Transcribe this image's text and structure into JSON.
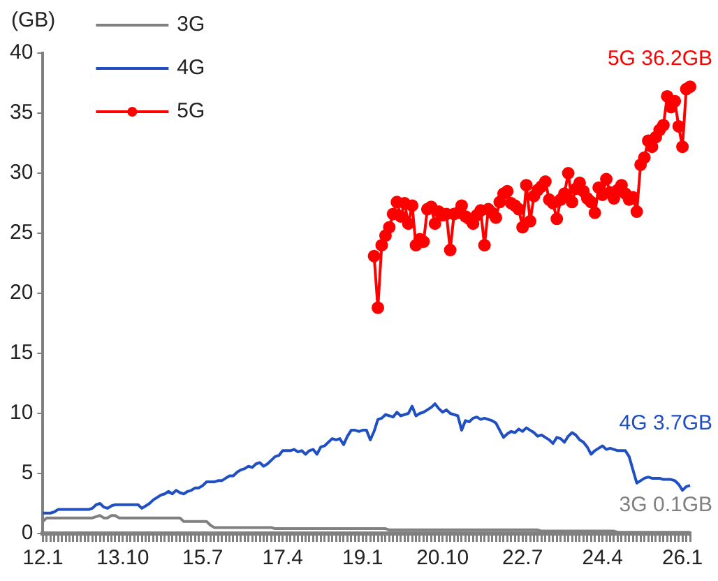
{
  "chart_data": {
    "type": "line",
    "ylabel": "(GB)",
    "legend": "top left",
    "grid": false,
    "line_style": "solid",
    "categories": [
      "12.1",
      null,
      null,
      null,
      null,
      null,
      null,
      null,
      null,
      null,
      null,
      null,
      null,
      null,
      null,
      null,
      null,
      null,
      null,
      null,
      null,
      "13.10",
      null,
      null,
      null,
      null,
      null,
      null,
      null,
      null,
      null,
      null,
      null,
      null,
      null,
      null,
      null,
      null,
      null,
      null,
      null,
      null,
      "15.7",
      null,
      null,
      null,
      null,
      null,
      null,
      null,
      null,
      null,
      null,
      null,
      null,
      null,
      null,
      null,
      null,
      null,
      null,
      null,
      null,
      "17.4",
      null,
      null,
      null,
      null,
      null,
      null,
      null,
      null,
      null,
      null,
      null,
      null,
      null,
      null,
      null,
      null,
      null,
      null,
      null,
      null,
      "19.1",
      null,
      null,
      null,
      null,
      null,
      null,
      null,
      null,
      null,
      null,
      null,
      null,
      null,
      null,
      null,
      null,
      null,
      null,
      null,
      null,
      "20.10",
      null,
      null,
      null,
      null,
      null,
      null,
      null,
      null,
      null,
      null,
      null,
      null,
      null,
      null,
      null,
      null,
      null,
      null,
      null,
      null,
      "22.7",
      null,
      null,
      null,
      null,
      null,
      null,
      null,
      null,
      null,
      null,
      null,
      null,
      null,
      null,
      null,
      null,
      null,
      null,
      null,
      null,
      "24.4",
      null,
      null,
      null,
      null,
      null,
      null,
      null,
      null,
      null,
      null,
      null,
      null,
      null,
      null,
      null,
      null,
      null,
      null,
      null,
      null,
      "26.1",
      null,
      null
    ],
    "ylim": [
      0,
      40
    ],
    "yticks": [
      0,
      5,
      10,
      15,
      20,
      25,
      30,
      35,
      40
    ],
    "series": [
      {
        "name": "3G",
        "color": "#808080",
        "marker": "none",
        "values": [
          1.0,
          1.3,
          1.3,
          1.3,
          1.3,
          1.3,
          1.3,
          1.3,
          1.3,
          1.3,
          1.3,
          1.3,
          1.3,
          1.3,
          1.4,
          1.5,
          1.3,
          1.3,
          1.5,
          1.5,
          1.3,
          1.3,
          1.3,
          1.3,
          1.3,
          1.3,
          1.3,
          1.3,
          1.3,
          1.3,
          1.3,
          1.3,
          1.3,
          1.3,
          1.3,
          1.3,
          1.3,
          1.0,
          1.0,
          1.0,
          1.0,
          1.0,
          1.0,
          1.0,
          0.7,
          0.5,
          0.5,
          0.5,
          0.5,
          0.5,
          0.5,
          0.5,
          0.5,
          0.5,
          0.5,
          0.5,
          0.5,
          0.5,
          0.5,
          0.5,
          0.5,
          0.4,
          0.4,
          0.4,
          0.4,
          0.4,
          0.4,
          0.4,
          0.4,
          0.4,
          0.4,
          0.4,
          0.4,
          0.4,
          0.4,
          0.4,
          0.4,
          0.4,
          0.4,
          0.4,
          0.4,
          0.4,
          0.4,
          0.4,
          0.4,
          0.4,
          0.4,
          0.4,
          0.4,
          0.4,
          0.4,
          0.3,
          0.3,
          0.3,
          0.3,
          0.3,
          0.3,
          0.3,
          0.3,
          0.3,
          0.3,
          0.3,
          0.3,
          0.3,
          0.3,
          0.3,
          0.3,
          0.3,
          0.3,
          0.3,
          0.3,
          0.3,
          0.3,
          0.3,
          0.3,
          0.3,
          0.3,
          0.3,
          0.3,
          0.3,
          0.3,
          0.3,
          0.3,
          0.3,
          0.3,
          0.3,
          0.3,
          0.3,
          0.3,
          0.3,
          0.3,
          0.2,
          0.2,
          0.2,
          0.2,
          0.2,
          0.2,
          0.2,
          0.2,
          0.2,
          0.2,
          0.2,
          0.2,
          0.2,
          0.2,
          0.2,
          0.2,
          0.2,
          0.2,
          0.2,
          0.2,
          0.1,
          0.1,
          0.1,
          0.1,
          0.1,
          0.1,
          0.1,
          0.1,
          0.1,
          0.1,
          0.1,
          0.1,
          0.1,
          0.1,
          0.1,
          0.1,
          0.1,
          0.1,
          0.1,
          0.1
        ]
      },
      {
        "name": "4G",
        "color": "#1f4fc1",
        "marker": "none",
        "values": [
          1.7,
          1.7,
          1.7,
          1.8,
          2.0,
          2.0,
          2.0,
          2.0,
          2.0,
          2.0,
          2.0,
          2.0,
          2.0,
          2.1,
          2.4,
          2.5,
          2.2,
          2.1,
          2.3,
          2.4,
          2.4,
          2.4,
          2.4,
          2.4,
          2.4,
          2.4,
          2.1,
          2.3,
          2.5,
          2.8,
          3.0,
          3.2,
          3.3,
          3.5,
          3.3,
          3.6,
          3.4,
          3.3,
          3.5,
          3.6,
          3.8,
          3.8,
          4.0,
          4.3,
          4.3,
          4.3,
          4.4,
          4.4,
          4.6,
          4.8,
          4.8,
          5.1,
          5.3,
          5.4,
          5.6,
          5.5,
          5.8,
          5.9,
          5.6,
          5.8,
          6.1,
          6.4,
          6.5,
          6.9,
          6.9,
          6.9,
          7.0,
          6.8,
          6.9,
          6.6,
          6.9,
          7.0,
          6.6,
          7.2,
          7.3,
          7.6,
          7.9,
          7.8,
          7.9,
          7.4,
          8.1,
          8.6,
          8.6,
          8.5,
          8.6,
          8.6,
          7.8,
          8.5,
          9.5,
          9.6,
          9.9,
          9.8,
          9.7,
          10.1,
          9.8,
          9.9,
          10.0,
          10.6,
          9.8,
          10.0,
          10.1,
          10.3,
          10.5,
          10.8,
          10.4,
          10.1,
          10.3,
          10.0,
          9.9,
          9.8,
          8.6,
          9.4,
          9.3,
          9.6,
          9.7,
          9.5,
          9.6,
          9.5,
          9.4,
          9.2,
          8.6,
          8.0,
          8.3,
          8.5,
          8.4,
          8.7,
          8.5,
          8.8,
          8.6,
          8.4,
          8.1,
          8.2,
          8.0,
          7.8,
          7.5,
          8.0,
          7.9,
          7.6,
          8.1,
          8.4,
          8.2,
          7.8,
          7.6,
          7.2,
          6.6,
          6.9,
          7.1,
          7.3,
          7.0,
          7.1,
          7.0,
          6.9,
          6.9,
          6.9,
          6.4,
          5.3,
          4.2,
          4.4,
          4.6,
          4.7,
          4.6,
          4.6,
          4.6,
          4.5,
          4.5,
          4.5,
          4.4,
          4.1,
          3.6,
          3.9,
          4.0
        ]
      },
      {
        "name": "5G",
        "color": "#ff0000",
        "marker": "circle",
        "values": [
          null,
          null,
          null,
          null,
          null,
          null,
          null,
          null,
          null,
          null,
          null,
          null,
          null,
          null,
          null,
          null,
          null,
          null,
          null,
          null,
          null,
          null,
          null,
          null,
          null,
          null,
          null,
          null,
          null,
          null,
          null,
          null,
          null,
          null,
          null,
          null,
          null,
          null,
          null,
          null,
          null,
          null,
          null,
          null,
          null,
          null,
          null,
          null,
          null,
          null,
          null,
          null,
          null,
          null,
          null,
          null,
          null,
          null,
          null,
          null,
          null,
          null,
          null,
          null,
          null,
          null,
          null,
          null,
          null,
          null,
          null,
          null,
          null,
          null,
          null,
          null,
          null,
          null,
          null,
          null,
          null,
          null,
          null,
          null,
          null,
          null,
          null,
          23.1,
          18.8,
          24.0,
          24.8,
          25.5,
          26.6,
          27.6,
          26.4,
          27.5,
          25.8,
          27.3,
          24.0,
          24.5,
          24.3,
          27.0,
          27.2,
          25.8,
          26.8,
          26.5,
          26.6,
          23.6,
          26.6,
          26.7,
          27.3,
          26.4,
          26.2,
          25.8,
          26.5,
          26.9,
          24.0,
          27.0,
          26.7,
          26.3,
          27.6,
          28.3,
          28.5,
          27.5,
          27.3,
          27.0,
          25.5,
          29.0,
          26.0,
          28.1,
          28.6,
          28.9,
          29.3,
          27.8,
          27.5,
          26.2,
          27.8,
          28.3,
          30.0,
          27.6,
          28.7,
          29.2,
          28.5,
          27.9,
          27.6,
          26.7,
          28.8,
          28.2,
          29.5,
          28.4,
          27.9,
          28.6,
          29.0,
          28.3,
          27.8,
          28.0,
          26.8,
          30.7,
          31.3,
          32.7,
          32.2,
          33.0,
          33.6,
          34.0,
          36.4,
          35.5,
          36.0,
          33.9,
          32.2,
          37.0,
          37.2
        ]
      }
    ],
    "annotations": [
      "3G 0.1GB",
      "4G 3.7GB",
      "5G 36.2GB"
    ]
  }
}
